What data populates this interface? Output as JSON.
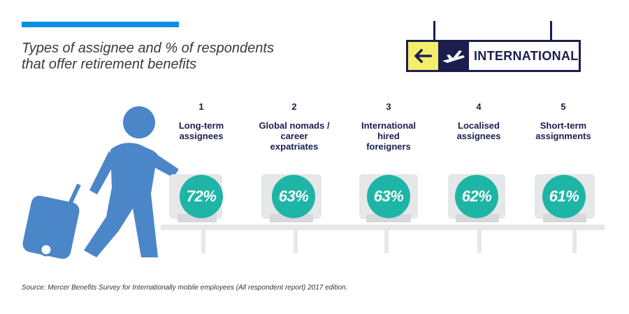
{
  "title_lines": [
    "Types of assignee and % of respondents",
    "that offer retirement benefits"
  ],
  "sign": {
    "text": "INTERNATIONAL",
    "arrow_icon": "left-arrow-icon",
    "plane_icon": "airplane-icon",
    "colors": {
      "dark": "#1b1e4f",
      "yellow": "#f4ee6a"
    }
  },
  "chart_data": {
    "type": "bar",
    "title": "Types of assignee and % of respondents that offer retirement benefits",
    "categories": [
      {
        "rank": "1",
        "label": "Long-term assignees"
      },
      {
        "rank": "2",
        "label": "Global nomads / career expatriates"
      },
      {
        "rank": "3",
        "label": "International hired foreigners"
      },
      {
        "rank": "4",
        "label": "Localised assignees"
      },
      {
        "rank": "5",
        "label": "Short-term assignments"
      }
    ],
    "series": [
      {
        "name": "% of respondents that offer retirement benefits",
        "values": [
          72,
          63,
          63,
          62,
          61
        ],
        "labels": [
          "72%",
          "63%",
          "63%",
          "62%",
          "61%"
        ]
      }
    ],
    "unit": "%",
    "colors": {
      "accent": "#1fb5a6",
      "text": "#1b1e4f",
      "bar": "#0a8fe0"
    }
  },
  "source": "Source: Mercer Benefits Survey for Internationally mobile employees (All respondent report) 2017 edition."
}
